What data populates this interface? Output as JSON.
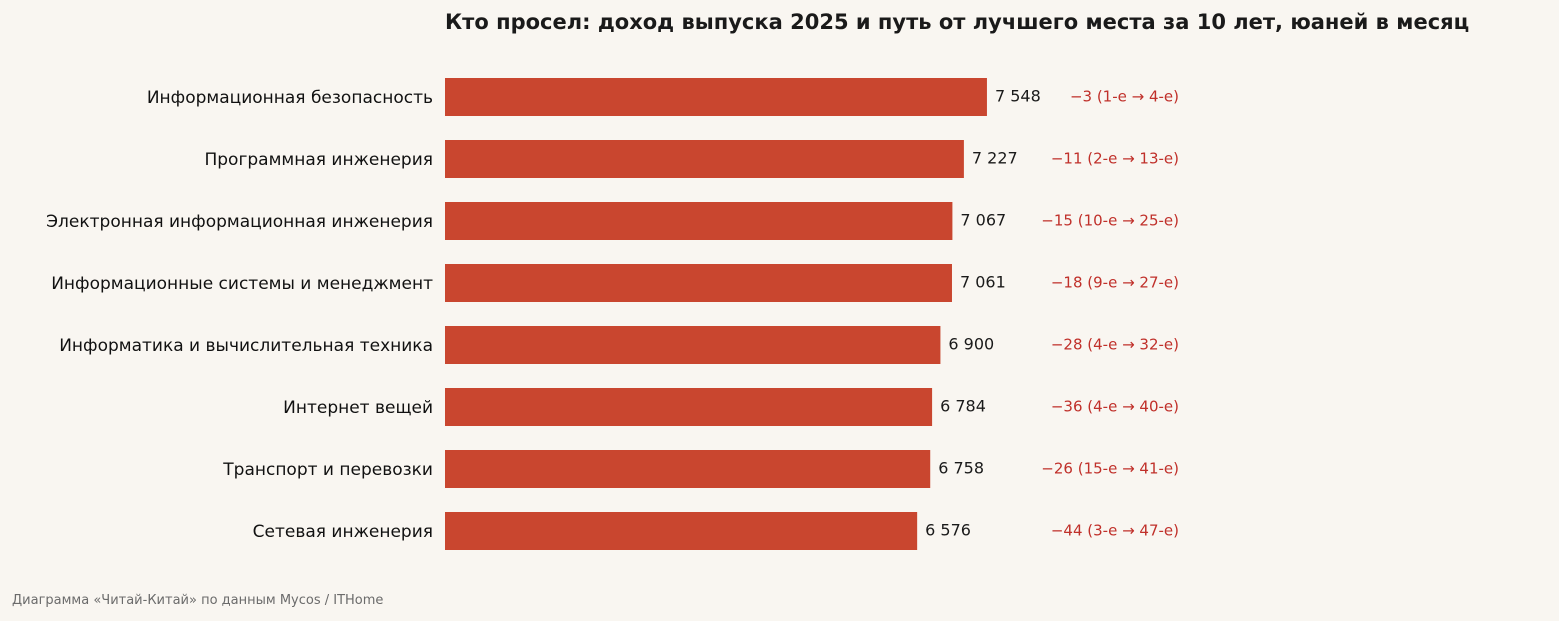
{
  "chart_data": {
    "type": "bar",
    "orientation": "horizontal",
    "title": "Кто просел: доход выпуска 2025 и путь от лучшего места за 10 лет, юаней в месяц",
    "categories": [
      "Информационная безопасность",
      "Программная инженерия",
      "Электронная информационная инженерия",
      "Информационные системы и менеджмент",
      "Информатика и вычислительная техника",
      "Интернет вещей",
      "Транспорт и перевозки",
      "Сетевая инженерия"
    ],
    "values": [
      7548,
      7227,
      7067,
      7061,
      6900,
      6784,
      6758,
      6576
    ],
    "value_labels": [
      "7 548",
      "7 227",
      "7 067",
      "7 061",
      "6 900",
      "6 784",
      "6 758",
      "6 576"
    ],
    "rank_change_labels": [
      "−3 (1-е → 4-е)",
      "−11 (2-е → 13-е)",
      "−15 (10-е → 25-е)",
      "−18 (9-е → 27-е)",
      "−28 (4-е → 32-е)",
      "−36 (4-е → 40-е)",
      "−26 (15-е → 41-е)",
      "−44 (3-е → 47-е)"
    ],
    "xlim": [
      0,
      10000
    ],
    "grid": false,
    "xlabel": "",
    "ylabel": ""
  },
  "footer": "Диаграмма «Читай-Китай» по данным Mycos / ITHome",
  "colors": {
    "bar": "#c9462f",
    "change_text": "#c0302a",
    "background": "#f9f6f1"
  }
}
